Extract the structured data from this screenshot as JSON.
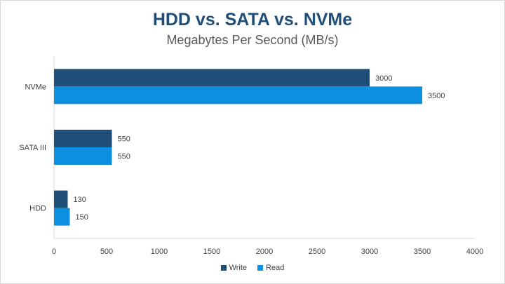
{
  "chart_data": {
    "type": "bar",
    "orientation": "horizontal",
    "title": "HDD vs. SATA vs. NVMe",
    "subtitle": "Megabytes Per Second (MB/s)",
    "xlabel": "",
    "ylabel": "",
    "categories": [
      "NVMe",
      "SATA III",
      "HDD"
    ],
    "series": [
      {
        "name": "Write",
        "values": [
          3000,
          550,
          130
        ],
        "color": "#1f4e79"
      },
      {
        "name": "Read",
        "values": [
          3500,
          550,
          150
        ],
        "color": "#0c8fdf"
      }
    ],
    "xlim": [
      0,
      4000
    ],
    "xticks": [
      "0",
      "500",
      "1000",
      "1500",
      "2000",
      "2500",
      "3000",
      "3500",
      "4000"
    ],
    "grid": false,
    "legend": "bottom"
  },
  "legend": {
    "write_label": "Write",
    "read_label": "Read"
  }
}
